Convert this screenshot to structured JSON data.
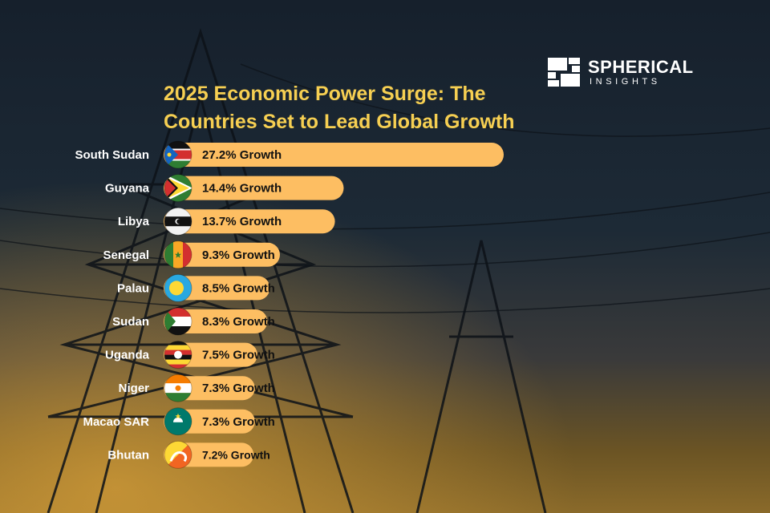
{
  "brand": {
    "name": "SPHERICAL",
    "sub": "INSIGHTS"
  },
  "colors": {
    "bar": "#fdbe62",
    "title": "#f6cf52",
    "text": "#111111",
    "label": "#ffffff"
  },
  "chart_data": {
    "type": "bar",
    "orientation": "horizontal",
    "title": "2025 Economic Power Surge: The Countries Set to Lead Global Growth",
    "categories": [
      "South Sudan",
      "Guyana",
      "Libya",
      "Senegal",
      "Palau",
      "Sudan",
      "Uganda",
      "Niger",
      "Macao SAR",
      "Bhutan"
    ],
    "values": [
      27.2,
      14.4,
      13.7,
      9.3,
      8.5,
      8.3,
      7.5,
      7.3,
      7.3,
      7.2
    ],
    "data_labels": [
      "27.2% Growth",
      "14.4% Growth",
      "13.7% Growth",
      "9.3% Growth",
      "8.5% Growth",
      "8.3% Growth",
      "7.5% Growth",
      "7.3% Growth",
      "7.3% Growth",
      "7.2% Growth"
    ],
    "flag_icons": [
      "south-sudan-flag-icon",
      "guyana-flag-icon",
      "libya-flag-icon",
      "senegal-flag-icon",
      "palau-flag-icon",
      "sudan-flag-icon",
      "uganda-flag-icon",
      "niger-flag-icon",
      "macao-flag-icon",
      "bhutan-flag-icon"
    ],
    "grid": false,
    "legend": "none"
  }
}
